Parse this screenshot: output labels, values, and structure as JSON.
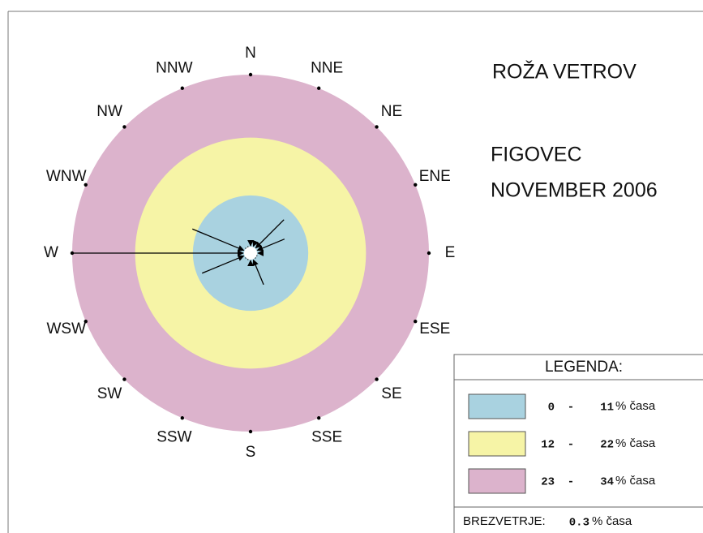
{
  "chart_data": {
    "type": "windrose",
    "title": "ROŽA VETROV",
    "subtitle": [
      "FIGOVEC",
      "NOVEMBER 2006"
    ],
    "directions": [
      "N",
      "NNE",
      "NE",
      "ENE",
      "E",
      "ESE",
      "SE",
      "SSE",
      "S",
      "SSW",
      "SW",
      "WSW",
      "W",
      "WNW",
      "NW",
      "NNW"
    ],
    "values": [
      2,
      1.5,
      9,
      7,
      1.5,
      0,
      0,
      6.5,
      1.5,
      0,
      0,
      10,
      34,
      12,
      0,
      0
    ],
    "color": "#000000",
    "rings": [
      {
        "from": 0,
        "to": 11,
        "color": "#a9d2e0"
      },
      {
        "from": 12,
        "to": 22,
        "color": "#f6f4a6"
      },
      {
        "from": 23,
        "to": 34,
        "color": "#dcb3cc"
      }
    ],
    "legend_title": "LEGENDA:",
    "range_separator": "-",
    "unit": "% časa",
    "calm_label": "BREZVETRJE:",
    "calm": 0.3
  }
}
